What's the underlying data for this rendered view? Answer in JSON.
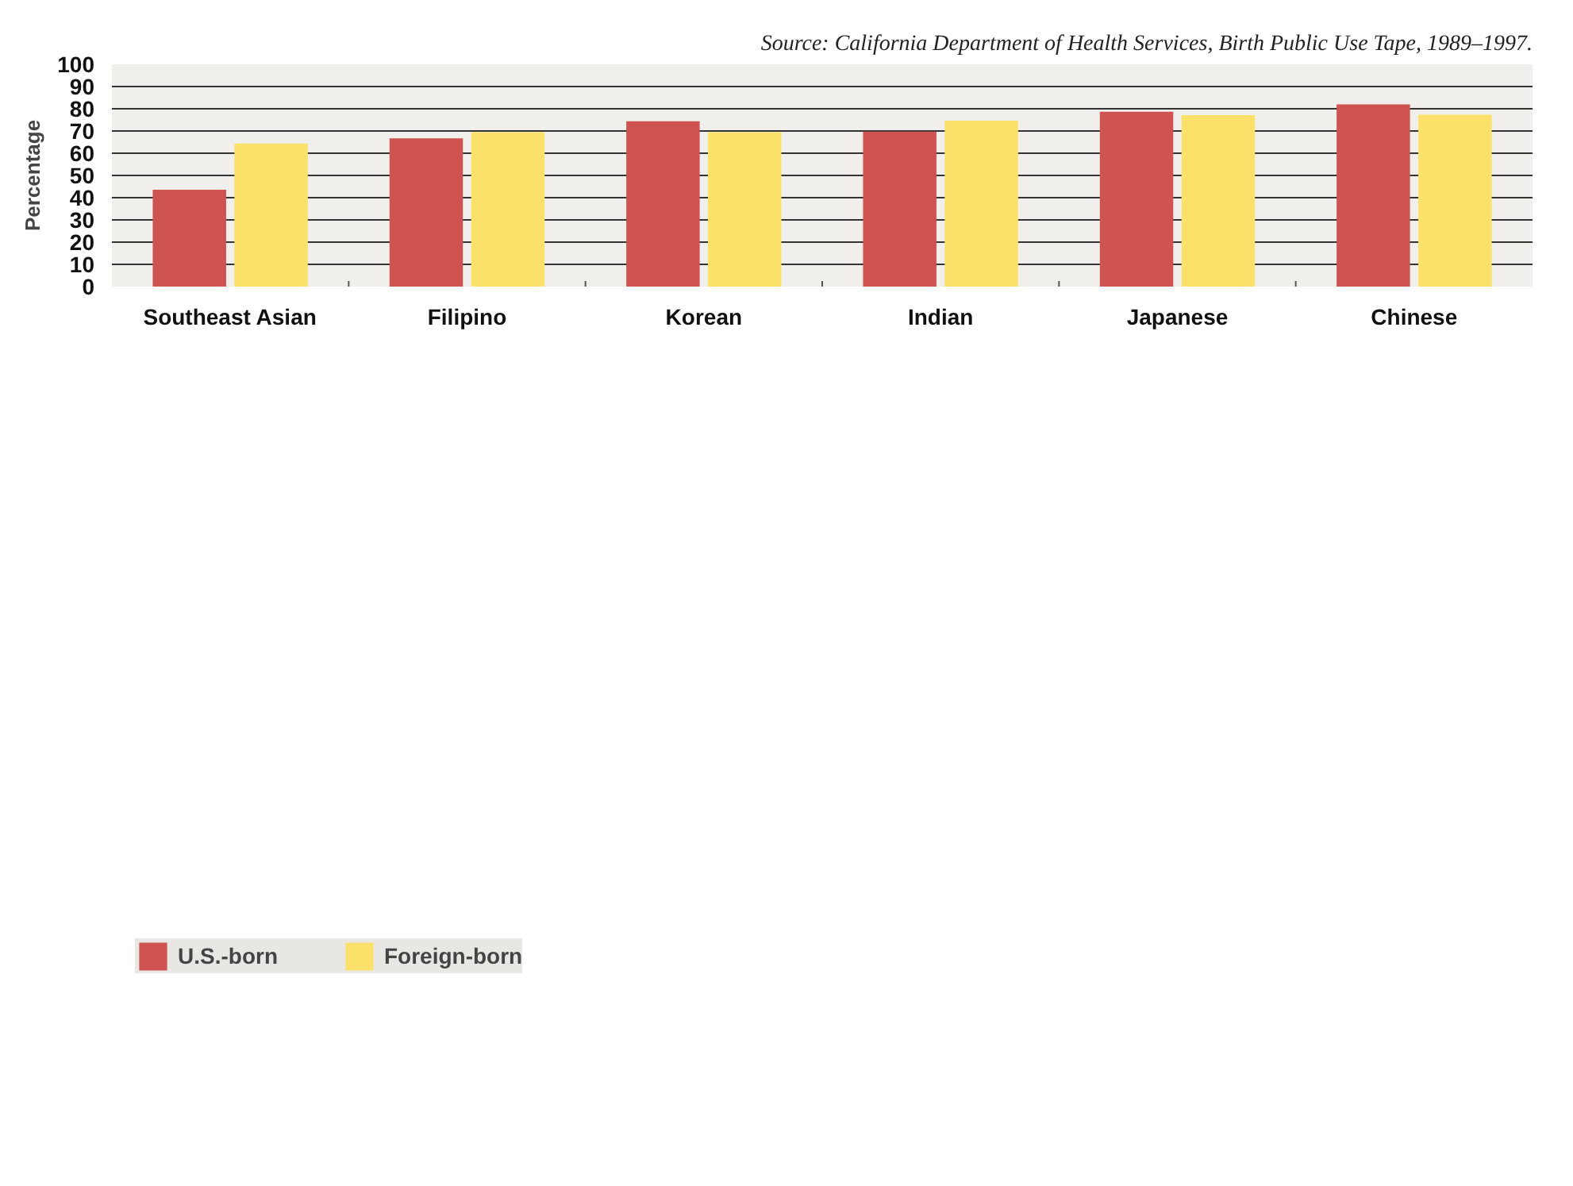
{
  "chart_data": {
    "type": "bar",
    "ylabel": "Percentage",
    "annotations": [
      "Source: California Department of Health Services, Birth Public Use Tape, 1989–1997."
    ],
    "categories": [
      "Southeast Asian",
      "Filipino",
      "Korean",
      "Indian",
      "Japanese",
      "Chinese"
    ],
    "series": [
      {
        "name": "U.S.-born",
        "color": "#cf5351",
        "values": [
          43.6,
          66.7,
          74.4,
          69.7,
          78.7,
          82.0
        ]
      },
      {
        "name": "Foreign-born",
        "color": "#fbe169",
        "values": [
          64.4,
          69.5,
          69.5,
          74.6,
          77.1,
          77.3
        ]
      }
    ],
    "ylim": [
      0,
      100
    ],
    "yticks": [
      0,
      10,
      20,
      30,
      40,
      50,
      60,
      70,
      80,
      90,
      100
    ],
    "grid": "y",
    "legend": "bottom"
  }
}
